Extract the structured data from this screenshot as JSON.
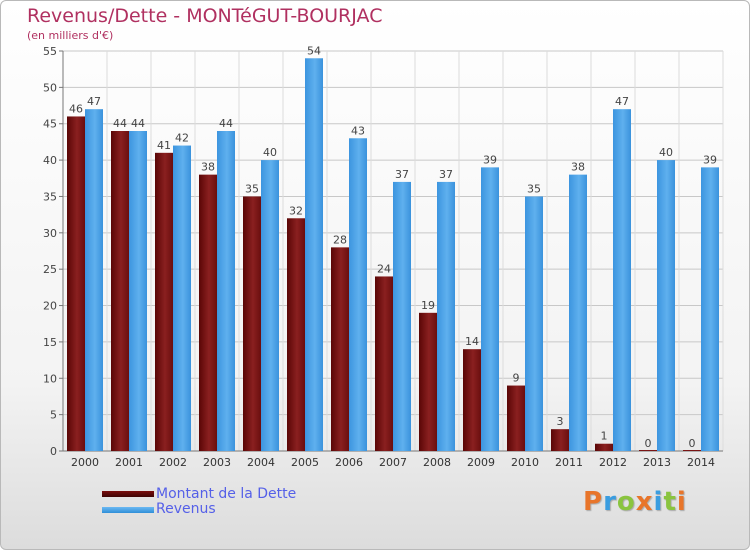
{
  "colors": {
    "title": "#b03060",
    "dette": "#7a1515",
    "revenus": "#4aa3e8",
    "legend_text": "#5560e8"
  },
  "header": {
    "title": "Revenus/Dette - MONTéGUT-BOURJAC",
    "subtitle": "(en milliers d'€)"
  },
  "legend": {
    "dette_label": "Montant de la Dette",
    "revenus_label": "Revenus"
  },
  "brand": {
    "text": "Proxiti",
    "colors": [
      "#e8752a",
      "#3a9de0",
      "#8ac43f",
      "#e8752a",
      "#3a9de0",
      "#8ac43f",
      "#e8752a"
    ]
  },
  "chart_data": {
    "type": "bar",
    "title": "Revenus/Dette - MONTéGUT-BOURJAC",
    "ylabel": "(en milliers d'€)",
    "xlabel": "",
    "ylim": [
      0,
      55
    ],
    "yticks": [
      0,
      5,
      10,
      15,
      20,
      25,
      30,
      35,
      40,
      45,
      50,
      55
    ],
    "grid": true,
    "legend_position": "bottom-left",
    "categories": [
      "2000",
      "2001",
      "2002",
      "2003",
      "2004",
      "2005",
      "2006",
      "2007",
      "2008",
      "2009",
      "2010",
      "2011",
      "2012",
      "2013",
      "2014"
    ],
    "series": [
      {
        "name": "Montant de la Dette",
        "values": [
          46,
          44,
          41,
          38,
          35,
          32,
          28,
          24,
          19,
          14,
          9,
          3,
          1,
          0,
          0
        ]
      },
      {
        "name": "Revenus",
        "values": [
          47,
          44,
          42,
          44,
          40,
          54,
          43,
          37,
          37,
          39,
          35,
          38,
          47,
          40,
          39
        ]
      }
    ]
  }
}
